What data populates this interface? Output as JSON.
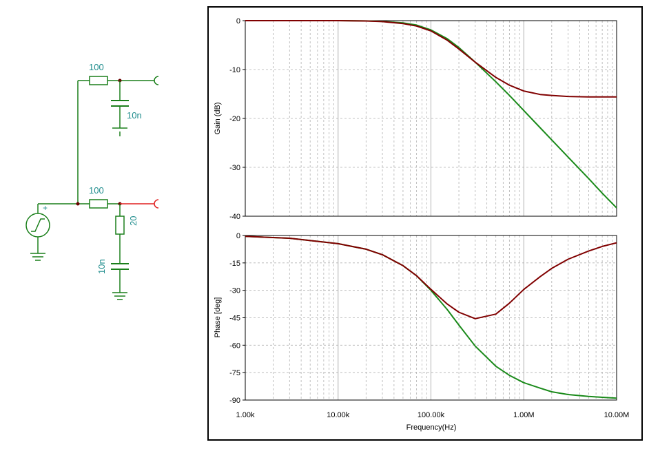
{
  "schematic": {
    "top_filter": {
      "resistor_label": "100",
      "capacitor_label": "10n"
    },
    "bottom_filter": {
      "resistor_label": "100",
      "damping_resistor_label": "20",
      "capacitor_label": "10n"
    },
    "source_polarity": "+",
    "colors": {
      "wire": "#1a7f1a",
      "label": "#1e8c8c",
      "output_top": "#1a7f1a",
      "output_bottom": "#e02020",
      "node": "#6b0000"
    }
  },
  "chart_data": [
    {
      "type": "line",
      "xscale": "log",
      "xlim": [
        1000,
        10000000
      ],
      "ylim": [
        -40,
        0
      ],
      "yticks": [
        0,
        -10,
        -20,
        -30,
        -40
      ],
      "ytick_labels": [
        "0",
        "-10",
        "-20",
        "-30",
        "-40"
      ],
      "ylabel": "Gain (dB)",
      "grid": true,
      "x": [
        1000,
        3000,
        10000,
        20000,
        30000,
        50000,
        70000,
        100000,
        150000,
        200000,
        300000,
        500000,
        700000,
        1000000,
        1500000,
        2000000,
        3000000,
        5000000,
        7000000,
        10000000
      ],
      "series": [
        {
          "color": "#1a8a1a",
          "values": [
            0,
            0,
            0,
            -0.05,
            -0.15,
            -0.45,
            -0.9,
            -1.9,
            -3.7,
            -5.5,
            -8.5,
            -12.5,
            -15.3,
            -18.4,
            -21.9,
            -24.4,
            -27.9,
            -32.3,
            -35.3,
            -38.3
          ]
        },
        {
          "color": "#800000",
          "values": [
            0,
            0,
            0,
            -0.07,
            -0.2,
            -0.6,
            -1.1,
            -2.1,
            -4.0,
            -5.8,
            -8.5,
            -11.6,
            -13.2,
            -14.4,
            -15.1,
            -15.3,
            -15.5,
            -15.6,
            -15.6,
            -15.6
          ]
        }
      ]
    },
    {
      "type": "line",
      "xscale": "log",
      "xlim": [
        1000,
        10000000
      ],
      "ylim": [
        -90,
        0
      ],
      "yticks": [
        0,
        -15,
        -30,
        -45,
        -60,
        -75,
        -90
      ],
      "ytick_labels": [
        "0",
        "-15",
        "-30",
        "-45",
        "-60",
        "-75",
        "-90"
      ],
      "xticks": [
        1000,
        10000,
        100000,
        1000000,
        10000000
      ],
      "xtick_labels": [
        "1.00k",
        "10.00k",
        "100.00k",
        "1.00M",
        "10.00M"
      ],
      "xlabel": "Frequency(Hz)",
      "ylabel": "Phase [deg]",
      "grid": true,
      "x": [
        1000,
        3000,
        10000,
        20000,
        30000,
        50000,
        70000,
        100000,
        150000,
        200000,
        300000,
        500000,
        700000,
        1000000,
        1500000,
        2000000,
        3000000,
        5000000,
        7000000,
        10000000
      ],
      "series": [
        {
          "color": "#1a8a1a",
          "values": [
            -0.5,
            -1.5,
            -4.5,
            -7.5,
            -10.5,
            -16.5,
            -22,
            -30,
            -40.5,
            -49,
            -60.5,
            -71.5,
            -76.5,
            -80.5,
            -83.5,
            -85.5,
            -87,
            -88,
            -88.5,
            -89
          ]
        },
        {
          "color": "#800000",
          "values": [
            -0.5,
            -1.5,
            -4.5,
            -7.5,
            -10.5,
            -16.5,
            -22,
            -29.5,
            -37.5,
            -42,
            -45.5,
            -43,
            -37,
            -29.5,
            -22.5,
            -18,
            -13,
            -8.5,
            -6,
            -4
          ]
        }
      ]
    }
  ]
}
